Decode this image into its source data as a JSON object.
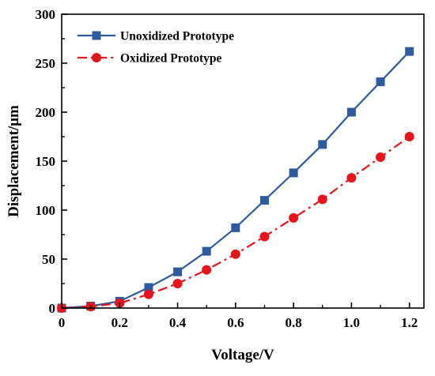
{
  "chart_data": {
    "type": "line",
    "title": "",
    "xlabel": "Voltage/V",
    "ylabel": "Displacement/μm",
    "xlim": [
      0,
      1.25
    ],
    "ylim": [
      0,
      300
    ],
    "x_ticks": [
      "0",
      "0.2",
      "0.4",
      "0.6",
      "0.8",
      "1.0",
      "1.2"
    ],
    "y_ticks": [
      "0",
      "50",
      "100",
      "150",
      "200",
      "250",
      "300"
    ],
    "grid": false,
    "legend_position": "top-left",
    "series": [
      {
        "name": "Unoxidized Prototype",
        "color": "#2e5aa0",
        "marker": "square",
        "line_style": "solid",
        "x": [
          0,
          0.1,
          0.2,
          0.3,
          0.4,
          0.5,
          0.6,
          0.7,
          0.8,
          0.9,
          1.0,
          1.1,
          1.2
        ],
        "values": [
          0,
          2,
          7,
          21,
          37,
          58,
          82,
          110,
          138,
          167,
          200,
          231,
          262
        ]
      },
      {
        "name": "Oxidized Prototype",
        "color": "#e8141c",
        "marker": "circle",
        "line_style": "dash-dot",
        "x": [
          0,
          0.1,
          0.2,
          0.3,
          0.4,
          0.5,
          0.6,
          0.7,
          0.8,
          0.9,
          1.0,
          1.1,
          1.2
        ],
        "values": [
          0,
          1.5,
          5,
          14,
          25,
          39,
          55,
          73,
          92,
          111,
          133,
          154,
          175
        ]
      }
    ]
  }
}
